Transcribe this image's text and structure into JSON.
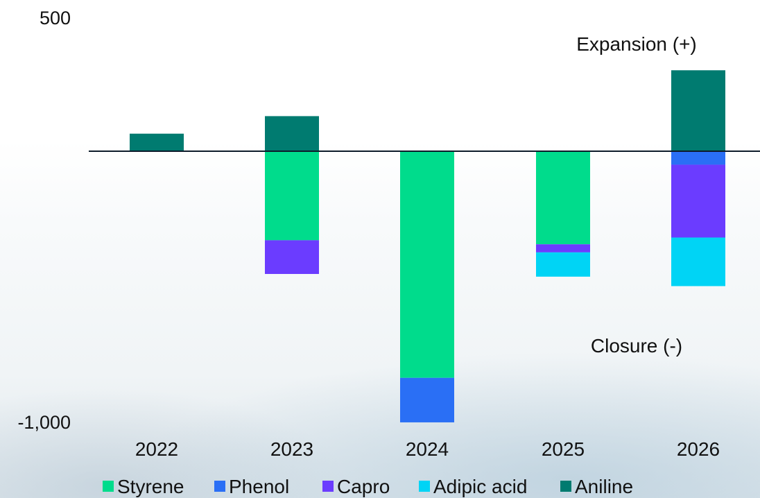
{
  "chart_data": {
    "type": "bar",
    "stacked": true,
    "categories": [
      "2022",
      "2023",
      "2024",
      "2025",
      "2026"
    ],
    "series": [
      {
        "name": "Styrene",
        "color": "#00dc8c",
        "values": [
          0,
          -330,
          -840,
          -345,
          0
        ]
      },
      {
        "name": "Phenol",
        "color": "#2a6ff5",
        "values": [
          0,
          0,
          -165,
          0,
          -50
        ]
      },
      {
        "name": "Capro",
        "color": "#6b3cff",
        "values": [
          0,
          -125,
          0,
          -30,
          -270
        ]
      },
      {
        "name": "Adipic acid",
        "color": "#00d4f5",
        "values": [
          0,
          0,
          0,
          -90,
          -180
        ]
      },
      {
        "name": "Aniline",
        "color": "#007b70",
        "values": [
          65,
          130,
          0,
          0,
          300
        ]
      }
    ],
    "ylim": [
      -1000,
      500
    ],
    "yticks": [
      "500",
      "-1,000"
    ],
    "annotations": [
      {
        "text": "Expansion (+)",
        "anchor": "upper-right"
      },
      {
        "text": "Closure (-)",
        "anchor": "lower-right"
      }
    ],
    "legend_position": "bottom",
    "grid": false
  }
}
